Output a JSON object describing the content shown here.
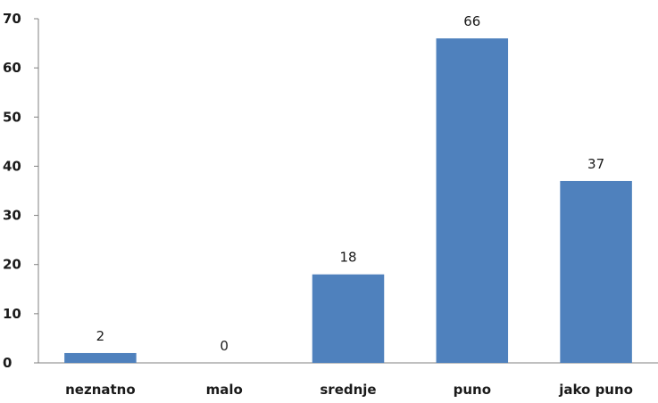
{
  "chart_data": {
    "type": "bar",
    "categories": [
      "neznatno",
      "malo",
      "srednje",
      "puno",
      "jako puno"
    ],
    "values": [
      2,
      0,
      18,
      66,
      37
    ],
    "title": "",
    "xlabel": "",
    "ylabel": "",
    "ylim": [
      0,
      70
    ],
    "yticks": [
      0,
      10,
      20,
      30,
      40,
      50,
      60,
      70
    ],
    "grid": false,
    "legend": "none",
    "data_labels": true,
    "bar_color": "#4f81bd"
  }
}
